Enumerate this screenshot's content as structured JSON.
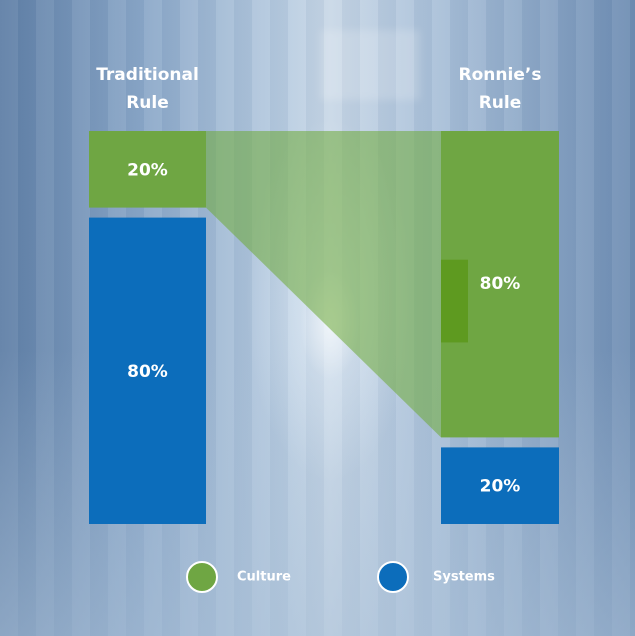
{
  "chart_data": {
    "type": "bar",
    "categories": [
      "Traditional Rule",
      "Ronnie’s Rule"
    ],
    "category_title_lines": [
      [
        "Traditional",
        "Rule"
      ],
      [
        "Ronnie’s",
        "Rule"
      ]
    ],
    "series": [
      {
        "name": "Culture",
        "values": [
          20,
          80
        ],
        "labels": [
          "20%",
          "80%"
        ]
      },
      {
        "name": "Systems",
        "values": [
          80,
          20
        ],
        "labels": [
          "80%",
          "20%"
        ]
      }
    ],
    "stacking": "100% stacked",
    "legend_position": "bottom-center",
    "grid": false
  },
  "colors": {
    "culture": "#6fa643",
    "culture_dark": "#5e9a20",
    "systems": "#0c6dbb",
    "flow": "rgba(110,170,55,0.55)",
    "text": "#ffffff"
  },
  "legend": [
    {
      "label": "Culture",
      "swatch": "culture-dot"
    },
    {
      "label": "Systems",
      "swatch": "systems-dot"
    }
  ]
}
